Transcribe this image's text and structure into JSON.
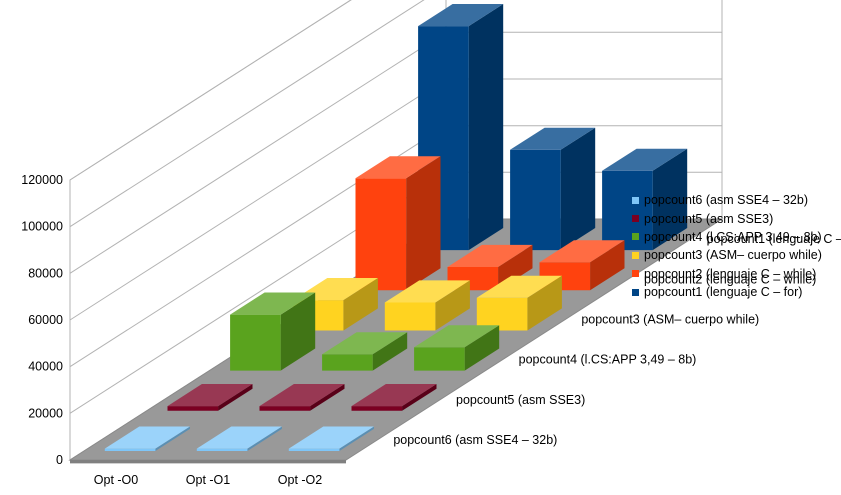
{
  "chart_data": {
    "type": "bar",
    "title": "",
    "xlabel": "",
    "ylabel": "",
    "categories": [
      "Opt -O0",
      "Opt -O1",
      "Opt -O2"
    ],
    "ylim": [
      0,
      120000
    ],
    "y_ticks": [
      "0",
      "20000",
      "40000",
      "60000",
      "80000",
      "100000",
      "120000"
    ],
    "grid": true,
    "legend_position": "right",
    "series": [
      {
        "name": "popcount6 (asm SSE4 – 32b)",
        "values": [
          1000,
          1000,
          1000
        ],
        "color": "#7fc6f8"
      },
      {
        "name": "popcount5 (asm SSE3)",
        "values": [
          2000,
          2000,
          2000
        ],
        "color": "#7b0022"
      },
      {
        "name": "popcount4 (l.CS:APP 3,49 – 8b)",
        "values": [
          24000,
          7000,
          10000
        ],
        "color": "#5aa31e"
      },
      {
        "name": "popcount3 (ASM– cuerpo while)",
        "values": [
          13000,
          12000,
          14000
        ],
        "color": "#ffd320"
      },
      {
        "name": "popcount2 (lenguaje C – while)",
        "values": [
          48000,
          10000,
          12000
        ],
        "color": "#ff420e"
      },
      {
        "name": "popcount1 (lenguaje C – for)",
        "values": [
          96000,
          43000,
          34000
        ],
        "color": "#004586"
      }
    ]
  }
}
